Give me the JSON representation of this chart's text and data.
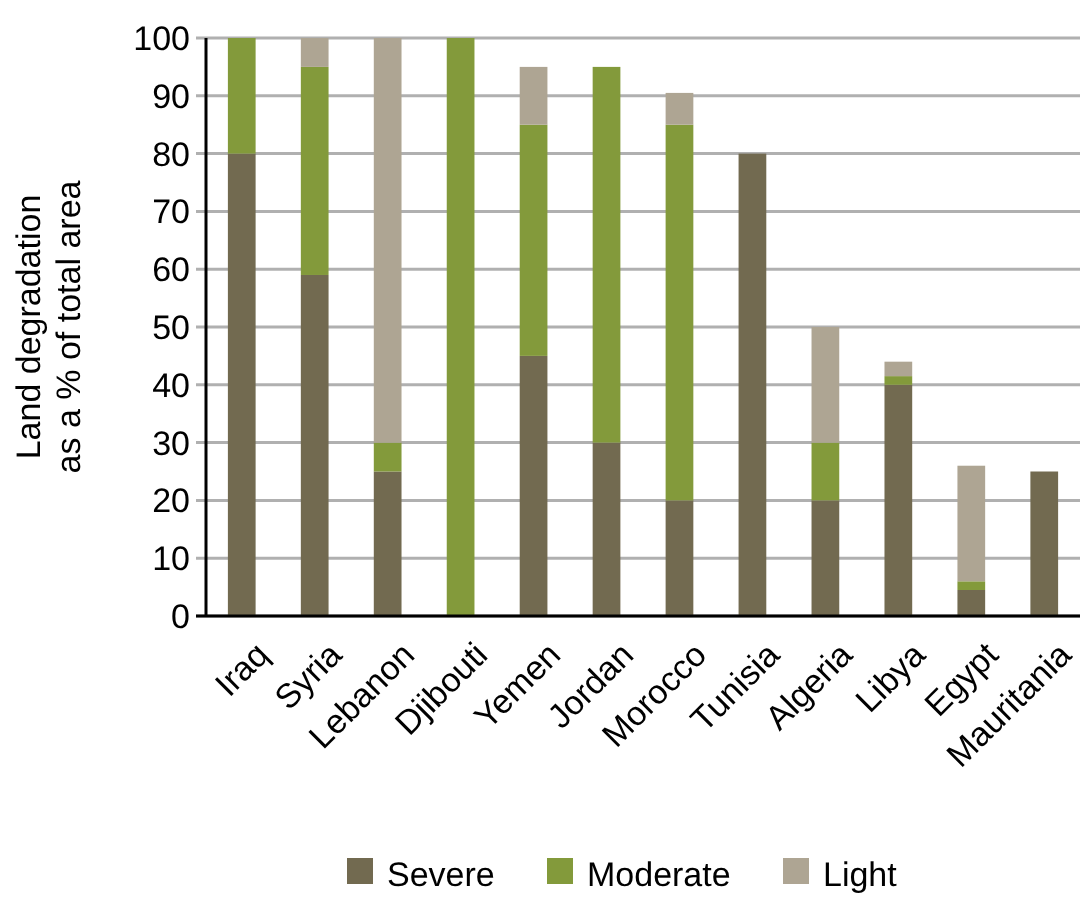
{
  "chart_data": {
    "type": "bar",
    "stacked": true,
    "ylabel": "Land degradation\nas a % of total area",
    "categories": [
      "Iraq",
      "Syria",
      "Lebanon",
      "Djibouti",
      "Yemen",
      "Jordan",
      "Morocco",
      "Tunisia",
      "Algeria",
      "Libya",
      "Egypt",
      "Mauritania"
    ],
    "series": [
      {
        "name": "Severe",
        "color": "#726a50",
        "values": [
          80,
          59,
          25,
          0,
          45,
          30,
          20,
          80,
          20,
          40,
          4.5,
          25
        ]
      },
      {
        "name": "Moderate",
        "color": "#839a3b",
        "values": [
          20,
          36,
          5,
          100,
          40,
          65,
          65,
          0,
          10,
          1.5,
          1.5,
          0
        ]
      },
      {
        "name": "Light",
        "color": "#aea593",
        "values": [
          0,
          5,
          70,
          0,
          10,
          0,
          5.5,
          0,
          20,
          2.5,
          20,
          0
        ]
      }
    ],
    "ylim": [
      0,
      100
    ],
    "yticks": [
      0,
      10,
      20,
      30,
      40,
      50,
      60,
      70,
      80,
      90,
      100
    ],
    "grid": "y",
    "legend": "bottom"
  }
}
